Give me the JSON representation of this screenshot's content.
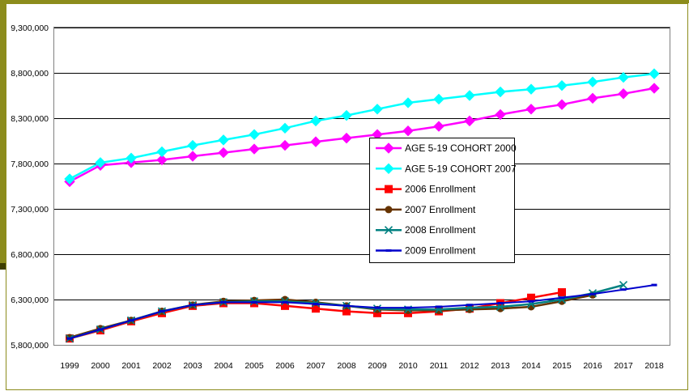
{
  "colors": {
    "slide_accent": "#8c8c1c",
    "slide_accent_dark": "#3d3d00",
    "frame": "#8c8c1c",
    "plot_bg": "#ffffff",
    "grid": "#000000"
  },
  "chart_data": {
    "type": "line",
    "title": "",
    "xlabel": "",
    "ylabel": "",
    "grid": "horizontal",
    "legend_position": "center-right",
    "categories": [
      "1999",
      "2000",
      "2001",
      "2002",
      "2003",
      "2004",
      "2005",
      "2006",
      "2007",
      "2008",
      "2009",
      "2010",
      "2011",
      "2012",
      "2013",
      "2014",
      "2015",
      "2016",
      "2017",
      "2018"
    ],
    "ylim": [
      5800000,
      9300000
    ],
    "yticks": [
      5800000,
      6300000,
      6800000,
      7300000,
      7800000,
      8300000,
      8800000,
      9300000
    ],
    "ytick_labels": [
      "5,800,000",
      "6,300,000",
      "6,800,000",
      "7,300,000",
      "7,800,000",
      "8,300,000",
      "8,800,000",
      "9,300,000"
    ],
    "series": [
      {
        "name": "AGE 5-19 COHORT 2000",
        "color": "#ff00ff",
        "marker": "diamond",
        "values": [
          7600000,
          7780000,
          7810000,
          7840000,
          7880000,
          7920000,
          7960000,
          8000000,
          8040000,
          8080000,
          8120000,
          8160000,
          8210000,
          8270000,
          8340000,
          8400000,
          8450000,
          8520000,
          8570000,
          8630000
        ]
      },
      {
        "name": "AGE 5-19 COHORT 2007",
        "color": "#00ffff",
        "marker": "diamond",
        "values": [
          7630000,
          7810000,
          7860000,
          7930000,
          8000000,
          8060000,
          8120000,
          8190000,
          8270000,
          8330000,
          8400000,
          8470000,
          8510000,
          8550000,
          8590000,
          8620000,
          8660000,
          8700000,
          8750000,
          8790000
        ]
      },
      {
        "name": "2006 Enrollment",
        "color": "#ff0000",
        "marker": "square",
        "values": [
          5870000,
          5960000,
          6060000,
          6150000,
          6230000,
          6260000,
          6260000,
          6230000,
          6200000,
          6170000,
          6150000,
          6150000,
          6170000,
          6200000,
          6260000,
          6320000,
          6380000,
          null,
          null,
          null
        ]
      },
      {
        "name": "2007 Enrollment",
        "color": "#663300",
        "marker": "circle",
        "values": [
          5880000,
          5980000,
          6070000,
          6170000,
          6240000,
          6280000,
          6290000,
          6300000,
          6270000,
          6230000,
          6190000,
          6180000,
          6180000,
          6190000,
          6200000,
          6220000,
          6280000,
          6350000,
          null,
          null
        ]
      },
      {
        "name": "2008 Enrollment",
        "color": "#008080",
        "marker": "x",
        "values": [
          5870000,
          5970000,
          6070000,
          6170000,
          6240000,
          6270000,
          6280000,
          6280000,
          6260000,
          6230000,
          6200000,
          6190000,
          6190000,
          6210000,
          6220000,
          6250000,
          6300000,
          6370000,
          6460000,
          null
        ]
      },
      {
        "name": "2009 Enrollment",
        "color": "#0000cc",
        "marker": "dash",
        "values": [
          5870000,
          5970000,
          6070000,
          6170000,
          6240000,
          6270000,
          6270000,
          6270000,
          6250000,
          6230000,
          6210000,
          6210000,
          6220000,
          6240000,
          6260000,
          6280000,
          6320000,
          6360000,
          6410000,
          6460000
        ]
      }
    ]
  }
}
